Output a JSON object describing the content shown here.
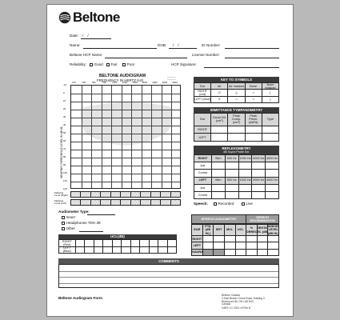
{
  "brand": {
    "name": "Beltone",
    "accent": "#111111"
  },
  "header": {
    "date": "Date:",
    "dob": "DOB:",
    "id_number": "ID Number:",
    "name": "Name:",
    "hcp_name": "Beltone HCP Name:",
    "license": "License Number:",
    "reliability": "Reliability:",
    "good": "Good",
    "fair": "Fair",
    "poor": "Poor",
    "hcp_signature": "HCP Signature:"
  },
  "audiogram": {
    "title": "BELTONE AUDIOGRAM",
    "subtitle": "FREQUENCY IN HERTZ (Hz)",
    "top_freqs": [
      "125",
      "250",
      "500",
      "750",
      "1000",
      "1500",
      "2000",
      "3000",
      "4000",
      "6000",
      "8000"
    ],
    "db_levels": [
      "-10",
      "0",
      "10",
      "20",
      "30",
      "40",
      "50",
      "60",
      "70",
      "80",
      "90",
      "100",
      "110",
      "120"
    ],
    "ylabel": "HEARING THRESHOLD LEVEL IN dB HL",
    "row_masking_right": "Masking Level (Right)",
    "row_masking_left": "Masking Level (Left)"
  },
  "key": {
    "title": "KEY TO SYMBOLS",
    "cols": [
      "Ear",
      "Air",
      "Air masked",
      "Bone",
      "Bone masked"
    ],
    "right": [
      "RIGHT (red)",
      "O",
      "△",
      "<",
      "["
    ],
    "left": [
      "LEFT (blue)",
      "X",
      "□",
      ">",
      "]"
    ]
  },
  "immittance": {
    "title": "IMMITTANCE TYMPANOMETRY",
    "cols": [
      "Ear",
      "Canal Vol. (cm³)",
      "Peak Comp. (cm³)",
      "Peak Press. (daPa)",
      "Type"
    ],
    "rows": [
      "RIGHT",
      "LEFT"
    ]
  },
  "reflex": {
    "title": "REFLEXOMETRY",
    "subtitle": "dB Supra Probe Ear",
    "right": "RIGHT",
    "left": "LEFT",
    "stim": "Stim",
    "freqs": [
      "500 Hz",
      "1000 Hz",
      "2000 Hz",
      "4000 Hz"
    ],
    "ipsi": "Ipsi",
    "contra": "Contra"
  },
  "speech": {
    "label": "Speech:",
    "recorded": "Recorded",
    "live": "Live"
  },
  "transducer": {
    "title": "Audiometer Type:",
    "items": [
      "Insert",
      "Headphones TDH 39",
      "Other"
    ]
  },
  "ucl": {
    "title": "UCL(dB)",
    "right": "RIGHT (Red)",
    "left": "LEFT (Blue)"
  },
  "speech_aud": {
    "title": "SPEECH AUDIOMETRY",
    "discrim": "SPEECH DISCRIMINATION",
    "cols": [
      "EAR",
      "PTA (dB HL)",
      "SRT",
      "MCL",
      "UCL",
      "% CORRECT",
      "PRESENTATION LEVEL (dB HL)",
      "MASKING LEVEL (dB HL)"
    ],
    "rows": [
      "RIGHT",
      "LEFT",
      "BINAURAL"
    ]
  },
  "comments": {
    "title": "COMMENTS"
  },
  "footer": {
    "form": "Beltone Audiogram Form",
    "company": "Beltone Canada",
    "address1": "2 East Beaver Creek Road, Building 3",
    "address2": "Richmond Hill, ON L4B 2N3",
    "country": "Canada",
    "code": "CABT r17-2024 r.5 Rev B"
  }
}
